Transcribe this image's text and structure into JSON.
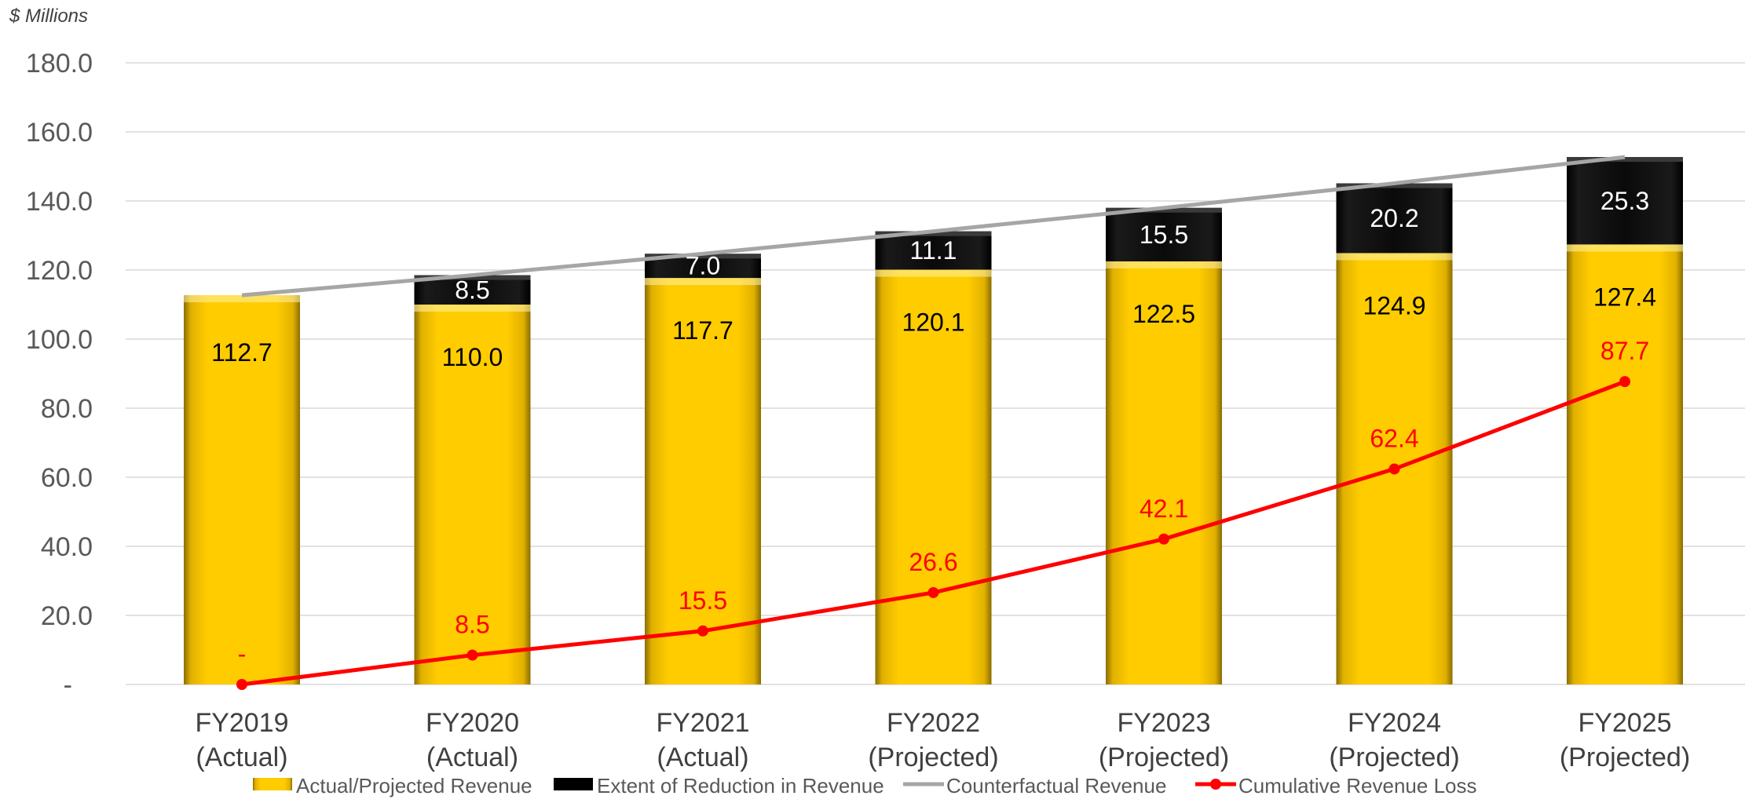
{
  "chart_data": {
    "type": "bar",
    "stacked": true,
    "unit_label": "$ Millions",
    "categories": [
      [
        "FY2019",
        "(Actual)"
      ],
      [
        "FY2020",
        "(Actual)"
      ],
      [
        "FY2021",
        "(Actual)"
      ],
      [
        "FY2022",
        "(Projected)"
      ],
      [
        "FY2023",
        "(Projected)"
      ],
      [
        "FY2024",
        "(Projected)"
      ],
      [
        "FY2025",
        "(Projected)"
      ]
    ],
    "ylim": [
      0,
      180
    ],
    "yticks": [
      {
        "value": 0,
        "label": "-"
      },
      {
        "value": 20,
        "label": "20.0"
      },
      {
        "value": 40,
        "label": "40.0"
      },
      {
        "value": 60,
        "label": "60.0"
      },
      {
        "value": 80,
        "label": "80.0"
      },
      {
        "value": 100,
        "label": "100.0"
      },
      {
        "value": 120,
        "label": "120.0"
      },
      {
        "value": 140,
        "label": "140.0"
      },
      {
        "value": 160,
        "label": "160.0"
      },
      {
        "value": 180,
        "label": "180.0"
      }
    ],
    "grid": true,
    "legend_position": "bottom",
    "series": [
      {
        "name": "Actual/Projected Revenue",
        "kind": "bar",
        "color": "#ffcc00",
        "values": [
          112.7,
          110.0,
          117.7,
          120.1,
          122.5,
          124.9,
          127.4
        ],
        "labels": [
          "112.7",
          "110.0",
          "117.7",
          "120.1",
          "122.5",
          "124.9",
          "127.4"
        ]
      },
      {
        "name": "Extent of Reduction in Revenue",
        "kind": "bar",
        "color": "#000000",
        "values": [
          0,
          8.5,
          7.0,
          11.1,
          15.5,
          20.2,
          25.3
        ],
        "labels": [
          "",
          "8.5",
          "7.0",
          "11.1",
          "15.5",
          "20.2",
          "25.3"
        ]
      },
      {
        "name": "Counterfactual Revenue",
        "kind": "line",
        "color": "#a6a6a6",
        "values": [
          112.7,
          118.5,
          124.7,
          131.2,
          138.0,
          145.1,
          152.7
        ]
      },
      {
        "name": "Cumulative Revenue Loss",
        "kind": "line",
        "color": "#ff0000",
        "values": [
          0,
          8.5,
          15.5,
          26.6,
          42.1,
          62.4,
          87.7
        ],
        "labels": [
          "-",
          "8.5",
          "15.5",
          "26.6",
          "42.1",
          "62.4",
          "87.7"
        ]
      }
    ]
  }
}
